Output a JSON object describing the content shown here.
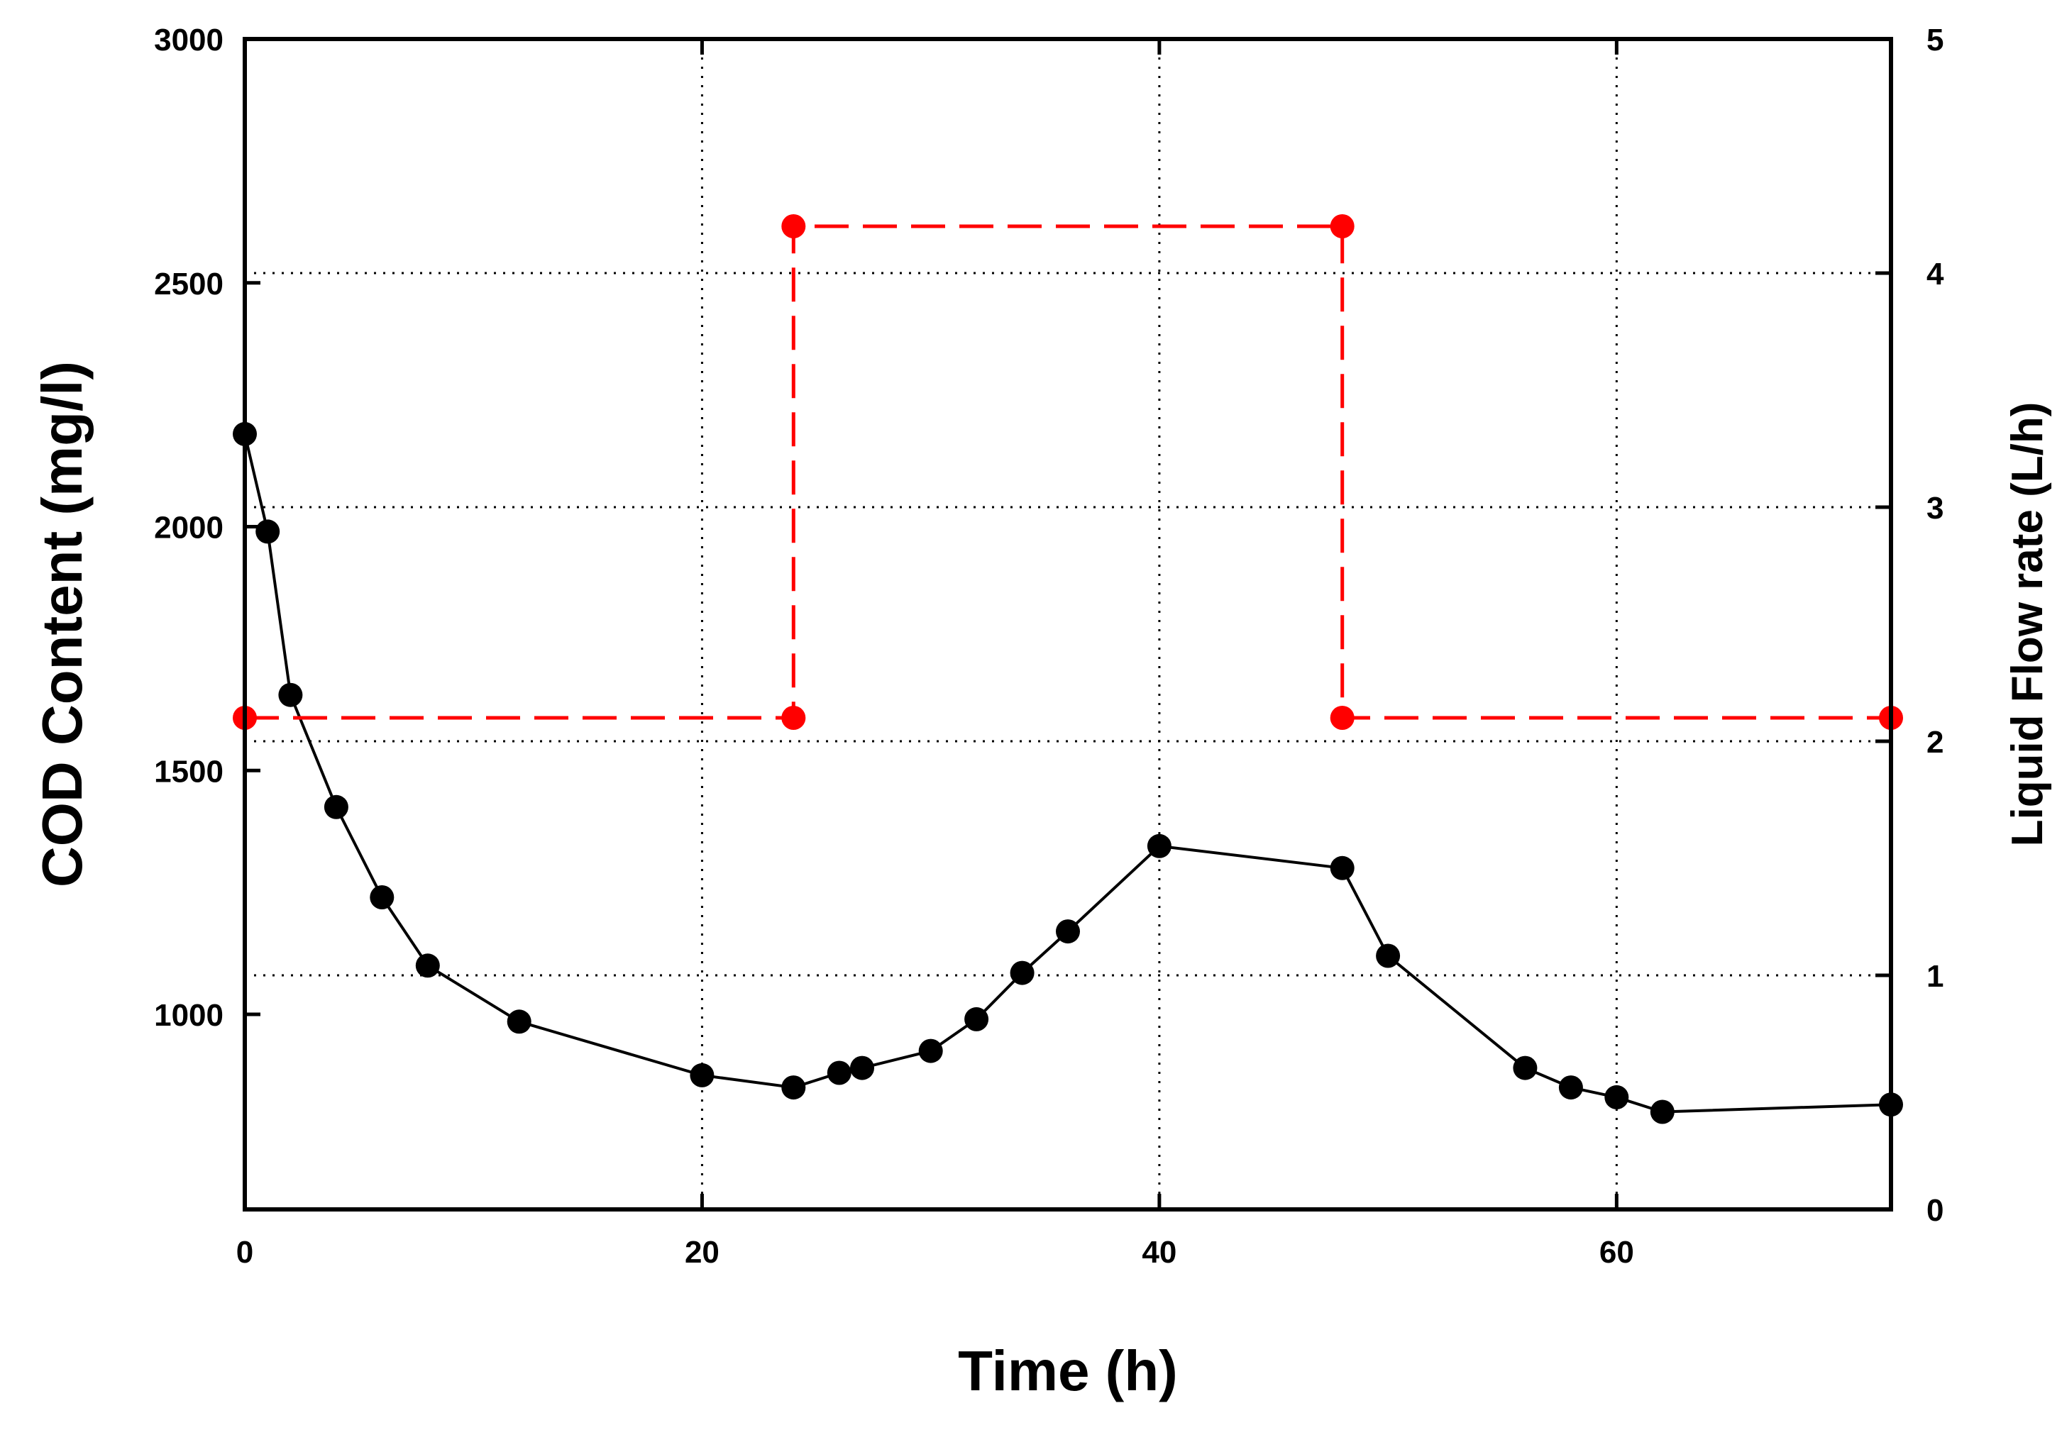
{
  "chart_data": {
    "type": "line",
    "title": "",
    "xlabel": "Time (h)",
    "ylabel": "COD Content (mg/l)",
    "y2label": "Liquid Flow rate (L/h)",
    "xlim": [
      0,
      72
    ],
    "ylim": [
      600,
      3000
    ],
    "y2lim": [
      0,
      5
    ],
    "x_ticks": [
      0,
      20,
      40,
      60
    ],
    "y_ticks": [
      1000,
      1500,
      2000,
      2500,
      3000
    ],
    "y2_ticks": [
      0,
      1,
      2,
      3,
      4,
      5
    ],
    "grid": true,
    "colors": {
      "cod": "#000000",
      "flow": "#ff0000",
      "y2_axis_label": "#ff0000"
    },
    "series": [
      {
        "name": "COD Content",
        "axis": "left",
        "style": "solid line with circle markers",
        "x": [
          0,
          1,
          2,
          4,
          6,
          8,
          12,
          20,
          24,
          26,
          27,
          30,
          32,
          34,
          36,
          40,
          48,
          50,
          56,
          58,
          60,
          62,
          72
        ],
        "values": [
          2190,
          1990,
          1655,
          1425,
          1240,
          1100,
          985,
          875,
          850,
          880,
          890,
          925,
          990,
          1085,
          1170,
          1345,
          1300,
          1120,
          890,
          850,
          830,
          800,
          815
        ]
      },
      {
        "name": "Liquid Flow rate",
        "axis": "right",
        "style": "dashed step line with circle markers",
        "x": [
          0,
          24,
          24,
          48,
          48,
          72
        ],
        "values": [
          2.1,
          2.1,
          4.2,
          4.2,
          2.1,
          2.1
        ]
      }
    ]
  }
}
